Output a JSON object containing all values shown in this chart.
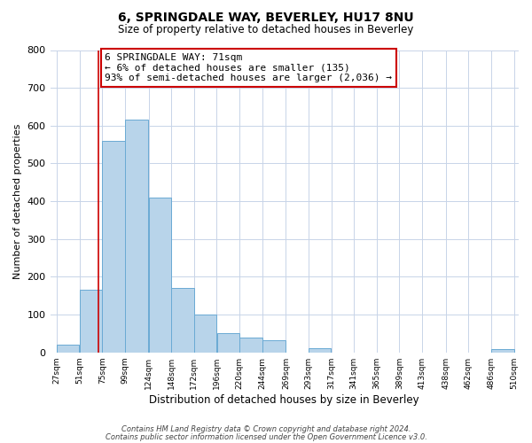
{
  "title": "6, SPRINGDALE WAY, BEVERLEY, HU17 8NU",
  "subtitle": "Size of property relative to detached houses in Beverley",
  "xlabel": "Distribution of detached houses by size in Beverley",
  "ylabel": "Number of detached properties",
  "bar_left_edges": [
    27,
    51,
    75,
    99,
    124,
    148,
    172,
    196,
    220,
    244,
    269,
    293,
    317,
    341,
    365,
    389,
    413,
    438,
    462,
    486
  ],
  "bar_heights": [
    20,
    165,
    560,
    615,
    410,
    170,
    100,
    50,
    40,
    33,
    0,
    10,
    0,
    0,
    0,
    0,
    0,
    0,
    0,
    8
  ],
  "bar_widths": [
    24,
    24,
    24,
    25,
    24,
    24,
    24,
    24,
    24,
    25,
    24,
    24,
    24,
    24,
    24,
    24,
    25,
    24,
    24,
    24
  ],
  "tick_labels": [
    "27sqm",
    "51sqm",
    "75sqm",
    "99sqm",
    "124sqm",
    "148sqm",
    "172sqm",
    "196sqm",
    "220sqm",
    "244sqm",
    "269sqm",
    "293sqm",
    "317sqm",
    "341sqm",
    "365sqm",
    "389sqm",
    "413sqm",
    "438sqm",
    "462sqm",
    "486sqm",
    "510sqm"
  ],
  "tick_positions": [
    27,
    51,
    75,
    99,
    124,
    148,
    172,
    196,
    220,
    244,
    269,
    293,
    317,
    341,
    365,
    389,
    413,
    438,
    462,
    486,
    510
  ],
  "ylim": [
    0,
    800
  ],
  "xlim": [
    20,
    515
  ],
  "bar_color": "#b8d4ea",
  "bar_edge_color": "#6aaad4",
  "property_line_x": 71,
  "property_line_color": "#cc0000",
  "annotation_line1": "6 SPRINGDALE WAY: 71sqm",
  "annotation_line2": "← 6% of detached houses are smaller (135)",
  "annotation_line3": "93% of semi-detached houses are larger (2,036) →",
  "annotation_box_color": "#ffffff",
  "annotation_box_edge": "#cc0000",
  "footer_line1": "Contains HM Land Registry data © Crown copyright and database right 2024.",
  "footer_line2": "Contains public sector information licensed under the Open Government Licence v3.0.",
  "bg_color": "#ffffff",
  "grid_color": "#c8d4e8",
  "yticks": [
    0,
    100,
    200,
    300,
    400,
    500,
    600,
    700,
    800
  ],
  "title_fontsize": 10,
  "subtitle_fontsize": 8.5,
  "ylabel_fontsize": 8,
  "xlabel_fontsize": 8.5,
  "tick_fontsize": 6.5,
  "ytick_fontsize": 8,
  "annotation_fontsize": 8,
  "footer_fontsize": 6
}
